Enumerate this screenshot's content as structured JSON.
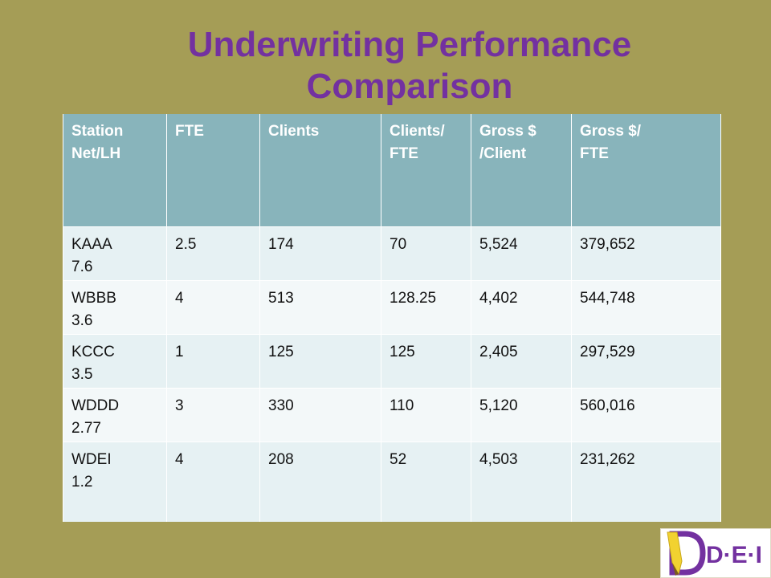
{
  "slide": {
    "title_line1": "Underwriting Performance",
    "title_line2": "Comparison"
  },
  "table": {
    "headers": [
      {
        "line1": "Station",
        "line2": "Net/LH"
      },
      {
        "line1": "FTE",
        "line2": ""
      },
      {
        "line1": "Clients",
        "line2": ""
      },
      {
        "line1": "Clients/",
        "line2": "FTE"
      },
      {
        "line1": "Gross $",
        "line2": "/Client"
      },
      {
        "line1": "Gross $/",
        "line2": "FTE"
      }
    ],
    "rows": [
      {
        "station": "KAAA",
        "net": "7.6",
        "fte": "2.5",
        "clients": "174",
        "clients_per_fte": "70",
        "gross_per_client": "5,524",
        "gross_per_fte": "379,652"
      },
      {
        "station": "WBBB",
        "net": "3.6",
        "fte": "4",
        "clients": "513",
        "clients_per_fte": "128.25",
        "gross_per_client": "4,402",
        "gross_per_fte": "544,748"
      },
      {
        "station": "KCCC",
        "net": "3.5",
        "fte": "1",
        "clients": "125",
        "clients_per_fte": "125",
        "gross_per_client": "2,405",
        "gross_per_fte": "297,529"
      },
      {
        "station": "WDDD",
        "net": "2.77",
        "fte": "3",
        "clients": "330",
        "clients_per_fte": "110",
        "gross_per_client": "5,120",
        "gross_per_fte": "560,016"
      },
      {
        "station": "WDEI",
        "net": "1.2",
        "fte": "4",
        "clients": "208",
        "clients_per_fte": "52",
        "gross_per_client": "4,503",
        "gross_per_fte": "231,262"
      }
    ]
  },
  "logo": {
    "text": "D·E·I",
    "icon": "pencil-d-logo-icon",
    "colors": {
      "purple": "#7331a0",
      "yellow": "#f2d230"
    }
  },
  "colors": {
    "background": "#a59d56",
    "title": "#7331a0",
    "header": "#88b4bb",
    "row_odd": "#e6f1f3",
    "row_even": "#f3f8f9"
  }
}
